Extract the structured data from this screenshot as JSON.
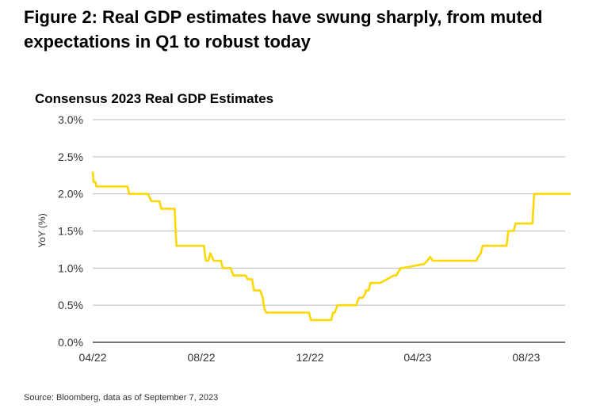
{
  "figure_title": "Figure 2: Real GDP estimates have swung sharply, from muted expectations in Q1 to robust today",
  "source": "Source: Bloomberg, data as of September 7, 2023",
  "chart_data": {
    "type": "line",
    "title": "Consensus 2023 Real GDP Estimates",
    "ylabel": "YoY (%)",
    "xlabel": "",
    "ylim": [
      0,
      3.0
    ],
    "yticks": [
      0,
      0.5,
      1.0,
      1.5,
      2.0,
      2.5,
      3.0
    ],
    "ytick_labels": [
      "0.0%",
      "0.5%",
      "1.0%",
      "1.5%",
      "2.0%",
      "2.5%",
      "3.0%"
    ],
    "xlim": [
      "2022-04-01",
      "2023-09-20"
    ],
    "xticks": [
      "2022-04-01",
      "2022-08-01",
      "2022-12-01",
      "2023-04-01",
      "2023-08-01"
    ],
    "xtick_labels": [
      "04/22",
      "08/22",
      "12/22",
      "04/23",
      "08/23"
    ],
    "grid": "horizontal",
    "line_color": "#FFD700",
    "series": [
      {
        "name": "",
        "x": [
          "2022-04-01",
          "2022-04-02",
          "2022-04-04",
          "2022-04-05",
          "2022-04-08",
          "2022-05-10",
          "2022-05-12",
          "2022-06-02",
          "2022-06-06",
          "2022-06-15",
          "2022-06-17",
          "2022-06-25",
          "2022-07-02",
          "2022-07-04",
          "2022-08-04",
          "2022-08-06",
          "2022-08-09",
          "2022-08-11",
          "2022-08-15",
          "2022-08-23",
          "2022-08-25",
          "2022-09-03",
          "2022-09-06",
          "2022-09-20",
          "2022-09-22",
          "2022-09-27",
          "2022-09-29",
          "2022-10-06",
          "2022-10-09",
          "2022-10-11",
          "2022-10-13",
          "2022-11-30",
          "2022-12-02",
          "2022-12-23",
          "2022-12-25",
          "2022-12-27",
          "2022-12-29",
          "2023-01-01",
          "2023-01-04",
          "2023-01-22",
          "2023-01-25",
          "2023-01-29",
          "2023-02-01",
          "2023-02-02",
          "2023-02-05",
          "2023-02-07",
          "2023-02-15",
          "2023-02-18",
          "2023-03-05",
          "2023-03-08",
          "2023-03-13",
          "2023-03-15",
          "2023-04-06",
          "2023-04-08",
          "2023-04-12",
          "2023-04-15",
          "2023-04-18",
          "2023-06-06",
          "2023-06-08",
          "2023-06-11",
          "2023-06-13",
          "2023-07-10",
          "2023-07-12",
          "2023-07-18",
          "2023-07-20",
          "2023-08-06",
          "2023-08-08",
          "2023-08-10",
          "2023-09-20"
        ],
        "y": [
          2.3,
          2.16,
          2.16,
          2.1,
          2.1,
          2.1,
          2.0,
          2.0,
          1.9,
          1.9,
          1.8,
          1.8,
          1.8,
          1.3,
          1.3,
          1.1,
          1.1,
          1.2,
          1.1,
          1.1,
          1.0,
          1.0,
          0.9,
          0.9,
          0.85,
          0.85,
          0.7,
          0.7,
          0.6,
          0.45,
          0.4,
          0.4,
          0.3,
          0.3,
          0.3,
          0.4,
          0.4,
          0.5,
          0.5,
          0.5,
          0.6,
          0.6,
          0.65,
          0.7,
          0.7,
          0.8,
          0.8,
          0.8,
          0.9,
          0.9,
          1.0,
          1.0,
          1.05,
          1.05,
          1.1,
          1.15,
          1.1,
          1.1,
          1.15,
          1.2,
          1.3,
          1.3,
          1.5,
          1.5,
          1.6,
          1.6,
          1.6,
          2.0,
          2.0
        ]
      }
    ]
  }
}
